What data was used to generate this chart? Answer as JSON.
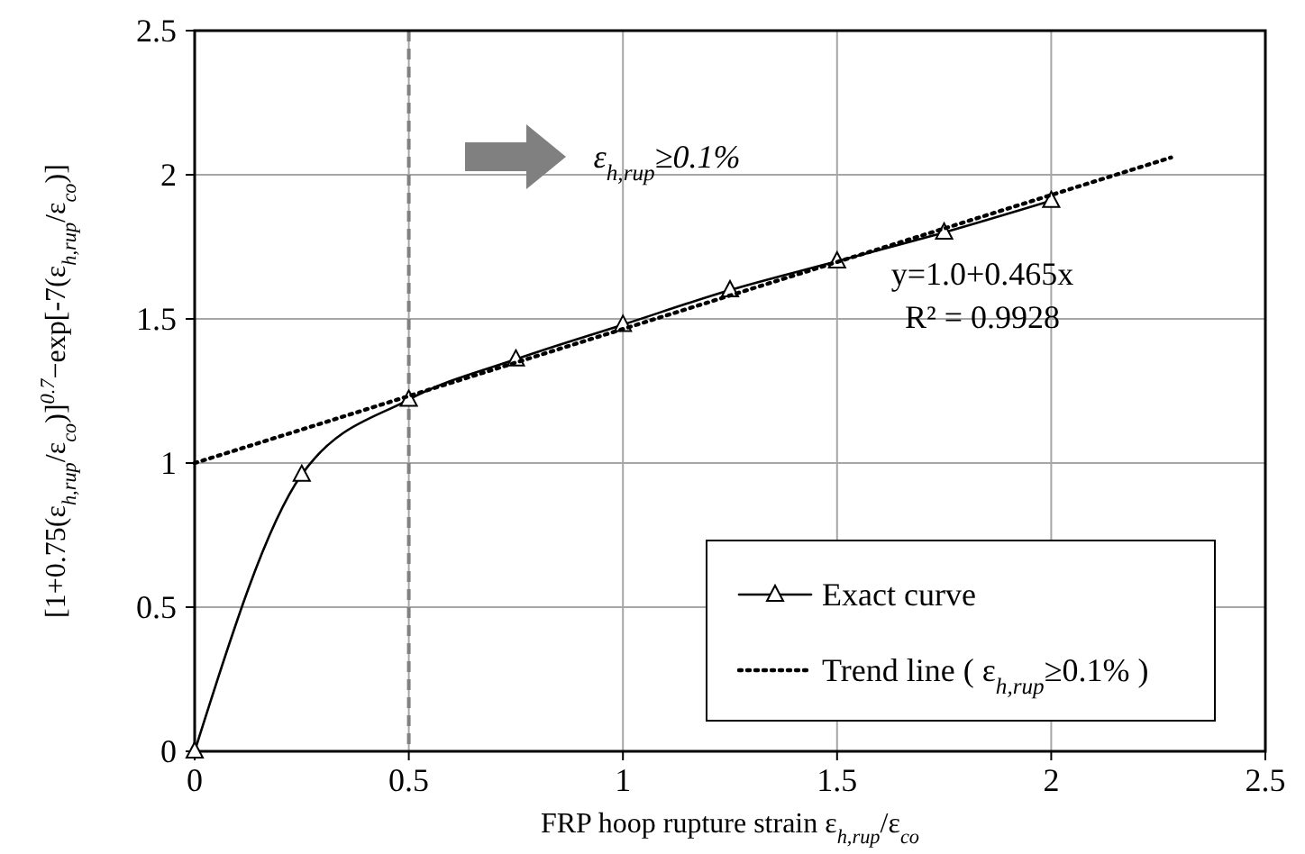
{
  "chart_data": {
    "type": "line",
    "xlabel": "FRP hoop rupture strain ε$_{h,rup}$/ε$_{co}$",
    "ylabel": "[1+0.75(ε$_{h,rup}$/ε$_{co}$)]$^{0.7}$−exp[-7(ε$_{h,rup}$/ε$_{co}$)]",
    "xlim": [
      0,
      2.5
    ],
    "xticks": [
      0,
      0.5,
      1,
      1.5,
      2,
      2.5
    ],
    "ylim": [
      0,
      2.5
    ],
    "yticks": [
      0,
      0.5,
      1,
      1.5,
      2,
      2.5
    ],
    "grid": true,
    "legend": "bottom right",
    "series": [
      {
        "name": "Exact curve",
        "color": "#000000",
        "marker": "triangle",
        "line_style": "solid",
        "x": [
          0,
          0.25,
          0.5,
          0.75,
          1.0,
          1.25,
          1.5,
          1.75,
          2.0
        ],
        "values": [
          0,
          0.96,
          1.22,
          1.36,
          1.48,
          1.6,
          1.7,
          1.8,
          1.91
        ]
      },
      {
        "name": "Trend line ( ε$_{h,rup}$≥0.1%  )",
        "color": "#000000",
        "marker": "none",
        "line_style": "dotted",
        "x": [
          0,
          2.28
        ],
        "values": [
          1.0,
          2.06
        ]
      }
    ],
    "ref_lines": [
      {
        "axis": "x",
        "value": 0.5,
        "color": "#808080",
        "line_style": "dashed"
      }
    ],
    "annotations": [
      "ε$_{h,rup}$≥0.1%",
      "y=1.0+0.465x",
      "R² = 0.9928"
    ]
  }
}
